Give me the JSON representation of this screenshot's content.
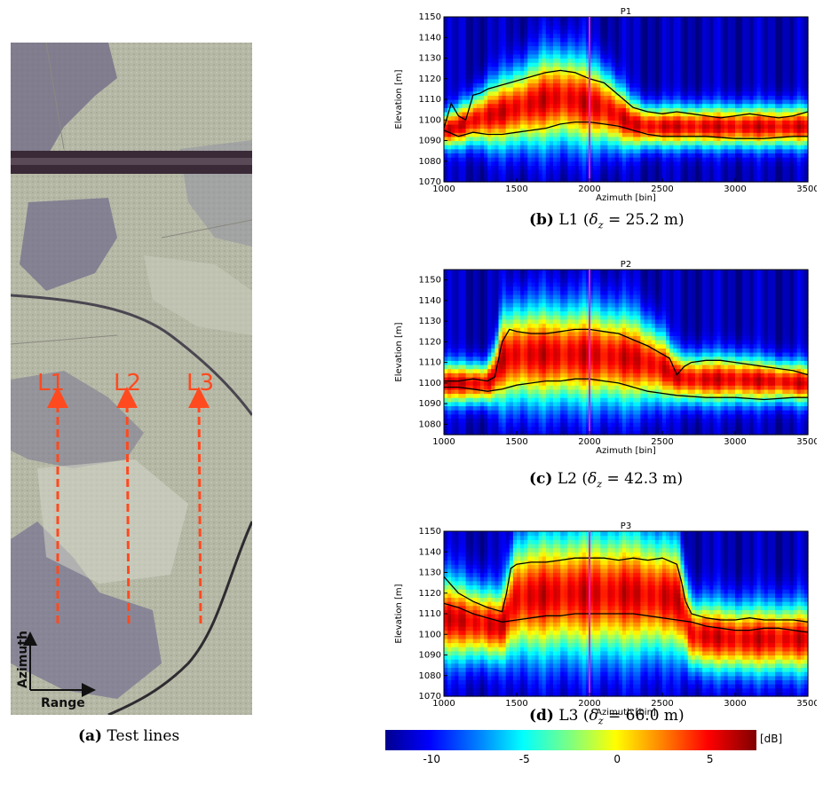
{
  "figure": {
    "panel_a": {
      "caption_tag": "(a)",
      "caption_text": "Test lines",
      "line_labels": [
        "L1",
        "L2",
        "L3"
      ],
      "axis_azimuth": "Azimuth",
      "axis_range": "Range"
    },
    "panels": [
      {
        "title": "P1",
        "caption_tag": "(b)",
        "caption_line": "L1",
        "caption_value": "25.2 m"
      },
      {
        "title": "P2",
        "caption_tag": "(c)",
        "caption_line": "L2",
        "caption_value": "42.3 m"
      },
      {
        "title": "P3",
        "caption_tag": "(d)",
        "caption_line": "L3",
        "caption_value": "66.0 m"
      }
    ],
    "colorbar": {
      "unit": "[dB]",
      "ticks": [
        "-10",
        "-5",
        "0",
        "5"
      ],
      "min": -12.5,
      "max": 7.5
    }
  },
  "chart_data": [
    {
      "type": "heatmap",
      "title": "P1",
      "xlabel": "Azimuth [bin]",
      "ylabel": "Elevation [m]",
      "xlim": [
        1000,
        3500
      ],
      "ylim": [
        1070,
        1150
      ],
      "xticks": [
        "1000",
        "1500",
        "2000",
        "2500",
        "3000",
        "3500"
      ],
      "yticks": [
        "1070",
        "1080",
        "1090",
        "1100",
        "1110",
        "1120",
        "1130",
        "1140",
        "1150"
      ],
      "marker_x": 2000,
      "colors": {
        "marker": "#e020e0"
      },
      "series": [
        {
          "x": [
            1000,
            1050,
            1100,
            1150,
            1200,
            1250,
            1300,
            1400,
            1500,
            1600,
            1700,
            1800,
            1900,
            2000,
            2100,
            2200,
            2300,
            2400,
            2500,
            2600,
            2700,
            2800,
            2900,
            3000,
            3100,
            3200,
            3300,
            3400,
            3500
          ],
          "y": [
            1096,
            1108,
            1102,
            1100,
            1112,
            1113,
            1115,
            1117,
            1119,
            1121,
            1123,
            1124,
            1123,
            1120,
            1118,
            1112,
            1106,
            1104,
            1103,
            1104,
            1103,
            1102,
            1101,
            1102,
            1103,
            1102,
            1101,
            1102,
            1104
          ]
        },
        {
          "x": [
            1000,
            1100,
            1200,
            1300,
            1400,
            1500,
            1600,
            1700,
            1800,
            1900,
            2000,
            2100,
            2200,
            2300,
            2400,
            2500,
            2600,
            2800,
            3000,
            3200,
            3400,
            3500
          ],
          "y": [
            1095,
            1092,
            1094,
            1093,
            1093,
            1094,
            1095,
            1096,
            1098,
            1099,
            1099,
            1098,
            1097,
            1095,
            1093,
            1092,
            1092,
            1092,
            1091,
            1091,
            1092,
            1092
          ]
        }
      ],
      "ridge": {
        "x": [
          1000,
          1100,
          1200,
          1300,
          1400,
          1500,
          1600,
          1700,
          1800,
          1900,
          2000,
          2100,
          2200,
          2300,
          2400,
          2500,
          2600,
          2800,
          3000,
          3200,
          3400,
          3500
        ],
        "center": [
          1095,
          1097,
          1100,
          1102,
          1104,
          1106,
          1108,
          1110,
          1111,
          1110,
          1108,
          1106,
          1102,
          1098,
          1097,
          1097,
          1097,
          1097,
          1097,
          1097,
          1097,
          1097
        ],
        "width": [
          5,
          6,
          7,
          9,
          10,
          11,
          12,
          13,
          13,
          13,
          12,
          11,
          9,
          7,
          6,
          6,
          6,
          6,
          6,
          6,
          6,
          6
        ]
      }
    },
    {
      "type": "heatmap",
      "title": "P2",
      "xlabel": "Azimuth [bin]",
      "ylabel": "Elevation [m]",
      "xlim": [
        1000,
        3500
      ],
      "ylim": [
        1075,
        1155
      ],
      "xticks": [
        "1000",
        "1500",
        "2000",
        "2500",
        "3000",
        "3500"
      ],
      "yticks": [
        "1080",
        "1090",
        "1100",
        "1110",
        "1120",
        "1130",
        "1140",
        "1150"
      ],
      "marker_x": 2000,
      "colors": {
        "marker": "#e020e0"
      },
      "series": [
        {
          "x": [
            1000,
            1100,
            1200,
            1300,
            1350,
            1400,
            1450,
            1500,
            1600,
            1700,
            1800,
            1900,
            2000,
            2100,
            2200,
            2300,
            2400,
            2500,
            2550,
            2600,
            2650,
            2700,
            2800,
            2900,
            3000,
            3100,
            3200,
            3300,
            3400,
            3500
          ],
          "y": [
            1101,
            1101,
            1102,
            1101,
            1103,
            1120,
            1126,
            1125,
            1124,
            1124,
            1125,
            1126,
            1126,
            1125,
            1124,
            1121,
            1118,
            1114,
            1112,
            1104,
            1108,
            1110,
            1111,
            1111,
            1110,
            1109,
            1108,
            1107,
            1106,
            1104
          ]
        },
        {
          "x": [
            1000,
            1100,
            1200,
            1300,
            1400,
            1500,
            1600,
            1700,
            1800,
            1900,
            2000,
            2100,
            2200,
            2300,
            2400,
            2500,
            2600,
            2800,
            3000,
            3200,
            3400,
            3500
          ],
          "y": [
            1098,
            1098,
            1097,
            1096,
            1097,
            1099,
            1100,
            1101,
            1101,
            1102,
            1102,
            1101,
            1100,
            1098,
            1096,
            1095,
            1094,
            1093,
            1093,
            1092,
            1093,
            1093
          ]
        }
      ],
      "ridge": {
        "x": [
          1000,
          1300,
          1350,
          1400,
          1500,
          1700,
          2000,
          2300,
          2500,
          2600,
          2700,
          3000,
          3300,
          3500
        ],
        "center": [
          1100,
          1100,
          1104,
          1112,
          1114,
          1114,
          1114,
          1112,
          1108,
          1103,
          1102,
          1102,
          1101,
          1100
        ],
        "width": [
          6,
          6,
          8,
          13,
          14,
          14,
          14,
          13,
          10,
          7,
          7,
          7,
          6,
          6
        ]
      }
    },
    {
      "type": "heatmap",
      "title": "P3",
      "xlabel": "Azimuth [bin]",
      "ylabel": "Elevation [m]",
      "xlim": [
        1000,
        3500
      ],
      "ylim": [
        1070,
        1150
      ],
      "xticks": [
        "1000",
        "1500",
        "2000",
        "2500",
        "3000",
        "3500"
      ],
      "yticks": [
        "1070",
        "1080",
        "1090",
        "1100",
        "1110",
        "1120",
        "1130",
        "1140",
        "1150"
      ],
      "marker_x": 2000,
      "colors": {
        "marker": "#e020e0"
      },
      "series": [
        {
          "x": [
            1000,
            1100,
            1200,
            1300,
            1400,
            1430,
            1460,
            1500,
            1600,
            1700,
            1800,
            1900,
            2000,
            2100,
            2200,
            2300,
            2400,
            2500,
            2600,
            2630,
            2660,
            2700,
            2800,
            2900,
            3000,
            3100,
            3200,
            3300,
            3400,
            3500
          ],
          "y": [
            1128,
            1120,
            1116,
            1113,
            1111,
            1120,
            1132,
            1134,
            1135,
            1135,
            1136,
            1137,
            1137,
            1137,
            1136,
            1137,
            1136,
            1137,
            1134,
            1126,
            1116,
            1110,
            1108,
            1107,
            1107,
            1108,
            1107,
            1107,
            1107,
            1106
          ]
        },
        {
          "x": [
            1000,
            1100,
            1200,
            1300,
            1400,
            1500,
            1600,
            1700,
            1800,
            1900,
            2000,
            2100,
            2200,
            2300,
            2400,
            2500,
            2600,
            2700,
            2800,
            2900,
            3000,
            3100,
            3200,
            3300,
            3400,
            3500
          ],
          "y": [
            1115,
            1113,
            1110,
            1108,
            1106,
            1107,
            1108,
            1109,
            1109,
            1110,
            1110,
            1110,
            1110,
            1110,
            1109,
            1108,
            1107,
            1106,
            1104,
            1103,
            1102,
            1102,
            1103,
            1103,
            1102,
            1101
          ]
        }
      ],
      "ridge": {
        "x": [
          1000,
          1200,
          1400,
          1450,
          1500,
          1800,
          2000,
          2300,
          2600,
          2650,
          2700,
          3000,
          3300,
          3500
        ],
        "center": [
          1108,
          1106,
          1104,
          1112,
          1118,
          1120,
          1120,
          1120,
          1118,
          1110,
          1100,
          1098,
          1098,
          1098
        ],
        "width": [
          12,
          11,
          10,
          14,
          17,
          18,
          18,
          18,
          16,
          13,
          10,
          10,
          10,
          10
        ]
      }
    }
  ]
}
